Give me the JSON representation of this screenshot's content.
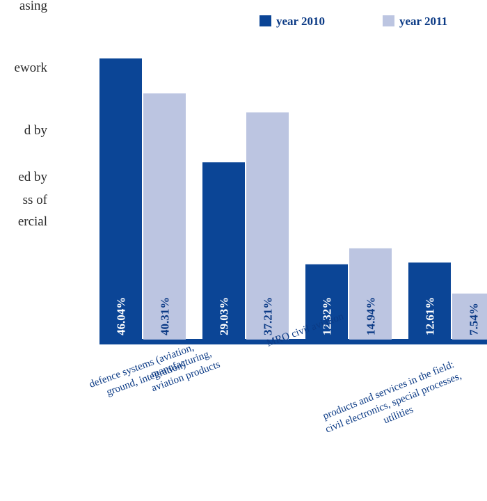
{
  "side_text": [
    "asing",
    "ework",
    "d by",
    "ed by",
    "ss of",
    "ercial"
  ],
  "chart_data": {
    "type": "bar",
    "categories": [
      [
        "defence systems (aviation,",
        "ground, integration)"
      ],
      [
        "manufacturing,",
        "aviation products"
      ],
      [
        "MRO civil aviation"
      ],
      [
        "products and services in the field:",
        "civil electronics, special processes,",
        "utilities"
      ]
    ],
    "series": [
      {
        "name": "year 2010",
        "color": "#0b4596",
        "label_color": "#ffffff",
        "values": [
          46.04,
          29.03,
          12.32,
          12.61
        ],
        "value_labels": [
          "46.04%",
          "29.03%",
          "12.32%",
          "12.61%"
        ]
      },
      {
        "name": "year 2011",
        "color": "#bcc5e1",
        "label_color": "#0b3a85",
        "values": [
          40.31,
          37.21,
          14.94,
          7.54
        ],
        "value_labels": [
          "40.31%",
          "37.21%",
          "14.94%",
          "7.54%"
        ]
      }
    ]
  }
}
